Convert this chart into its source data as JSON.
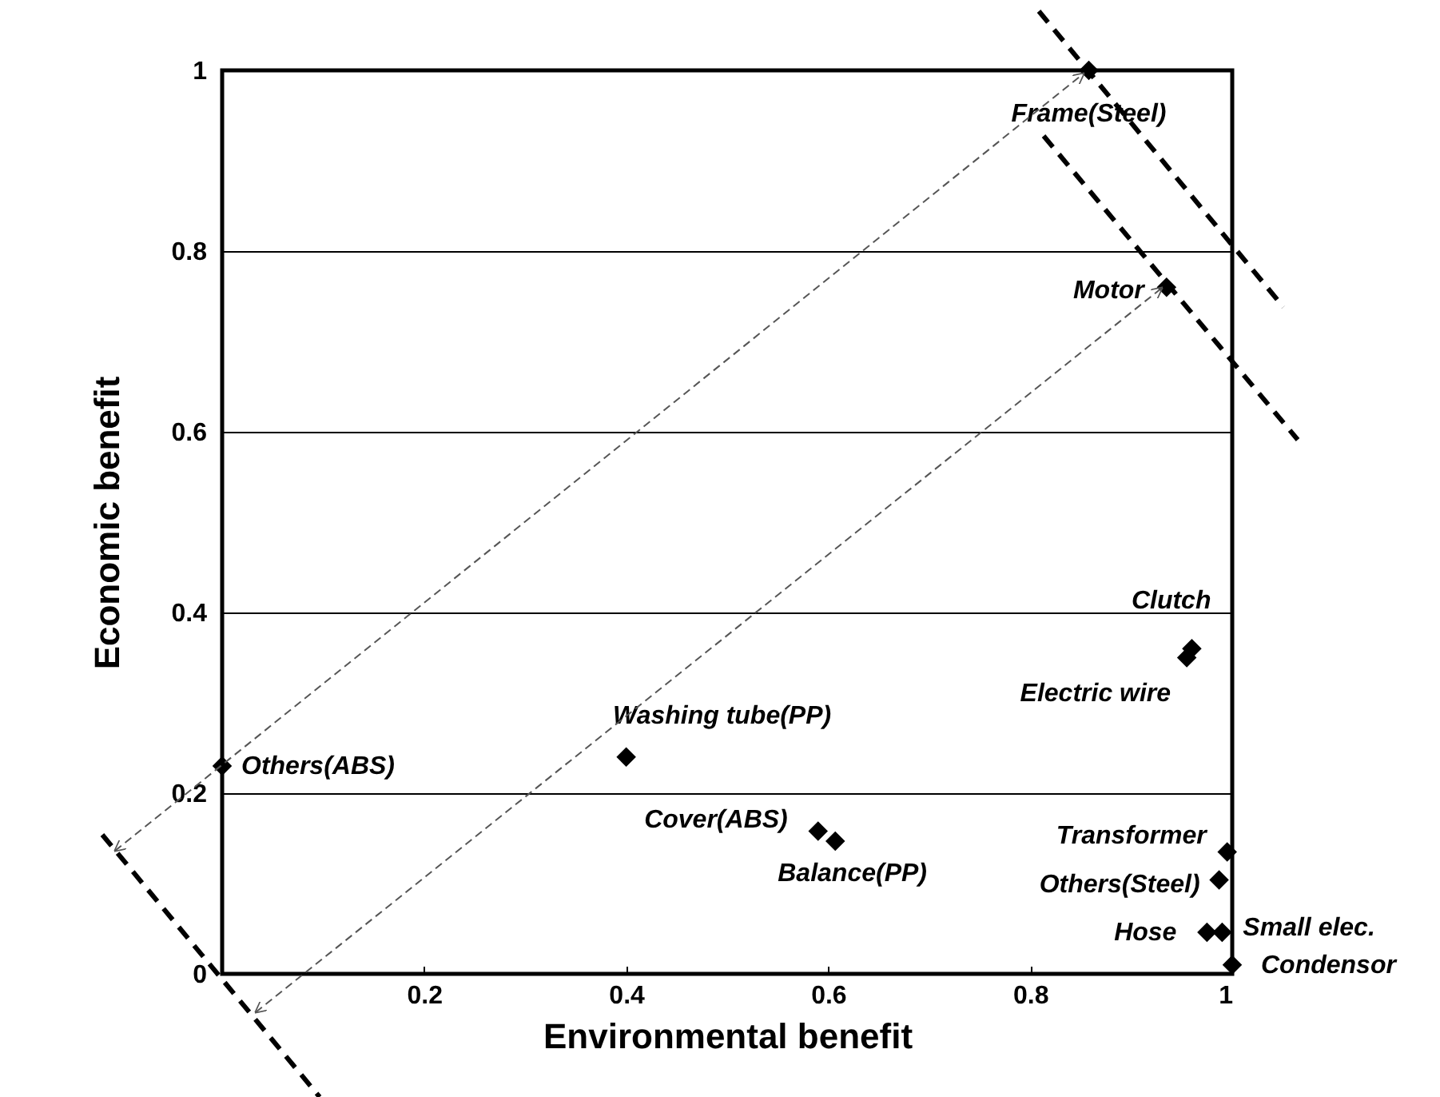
{
  "chart_data": {
    "type": "scatter",
    "xlabel": "Environmental benefit",
    "ylabel": "Economic benefit",
    "xlim": [
      0,
      1
    ],
    "ylim": [
      0,
      1
    ],
    "xticks": [
      0.2,
      0.4,
      0.6,
      0.8,
      1
    ],
    "yticks": [
      0,
      0.2,
      0.4,
      0.6,
      0.8,
      1
    ],
    "grid": "y",
    "marker": "diamond",
    "series": [
      {
        "name": "Frame(Steel)",
        "color": "#000000",
        "x": [
          0.858
        ],
        "values": [
          1.0
        ]
      },
      {
        "name": "Motor",
        "color": "#000000",
        "x": [
          0.935
        ],
        "values": [
          0.76
        ]
      },
      {
        "name": "Clutch",
        "color": "#000000",
        "x": [
          0.96
        ],
        "values": [
          0.36
        ]
      },
      {
        "name": "Electric wire",
        "color": "#000000",
        "x": [
          0.955
        ],
        "values": [
          0.35
        ]
      },
      {
        "name": "Others(ABS)",
        "color": "#000000",
        "x": [
          0.0
        ],
        "values": [
          0.23
        ]
      },
      {
        "name": "Washing tube(PP)",
        "color": "#000000",
        "x": [
          0.4
        ],
        "values": [
          0.24
        ]
      },
      {
        "name": "Cover(ABS)",
        "color": "#000000",
        "x": [
          0.59
        ],
        "values": [
          0.158
        ]
      },
      {
        "name": "Balance(PP)",
        "color": "#000000",
        "x": [
          0.607
        ],
        "values": [
          0.147
        ]
      },
      {
        "name": "Transformer",
        "color": "#000000",
        "x": [
          0.995
        ],
        "values": [
          0.135
        ]
      },
      {
        "name": "Others(Steel)",
        "color": "#000000",
        "x": [
          0.987
        ],
        "values": [
          0.104
        ]
      },
      {
        "name": "Hose",
        "color": "#000000",
        "x": [
          0.975
        ],
        "values": [
          0.046
        ]
      },
      {
        "name": "Small elec.",
        "color": "#000000",
        "x": [
          0.99
        ],
        "values": [
          0.046
        ]
      },
      {
        "name": "Condensor",
        "color": "#000000",
        "x": [
          1.0
        ],
        "values": [
          0.01
        ]
      }
    ]
  }
}
